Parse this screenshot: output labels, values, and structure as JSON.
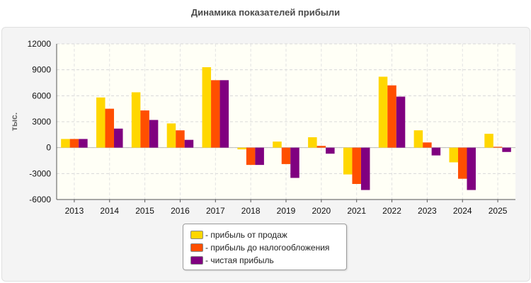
{
  "chart_data": {
    "type": "bar",
    "title": "Динамика показателей прибыли",
    "ylabel": "тыс.",
    "xlabel": "",
    "ylim": [
      -6000,
      12000
    ],
    "yticks": [
      12000,
      9000,
      6000,
      3000,
      0,
      -3000,
      -6000
    ],
    "grid": true,
    "legend_position": "bottom",
    "categories": [
      "2013",
      "2014",
      "2015",
      "2016",
      "2017",
      "2018",
      "2019",
      "2020",
      "2021",
      "2022",
      "2023",
      "2024",
      "2025"
    ],
    "series": [
      {
        "name": "- прибыль от продаж",
        "color": "#ffd700",
        "values": [
          1000,
          5800,
          6400,
          2800,
          9300,
          -200,
          700,
          1200,
          -3100,
          8200,
          2000,
          -1700,
          1600
        ]
      },
      {
        "name": "- прибыль до налогообложения",
        "color": "#ff4f00",
        "values": [
          1000,
          4500,
          4300,
          2000,
          7800,
          -2000,
          -1900,
          200,
          -4200,
          7200,
          600,
          -3600,
          100
        ]
      },
      {
        "name": "- чистая прибыль",
        "color": "#800080",
        "values": [
          1000,
          2200,
          3200,
          900,
          7800,
          -2000,
          -3500,
          -700,
          -4900,
          5900,
          -900,
          -4900,
          -500
        ]
      }
    ]
  }
}
